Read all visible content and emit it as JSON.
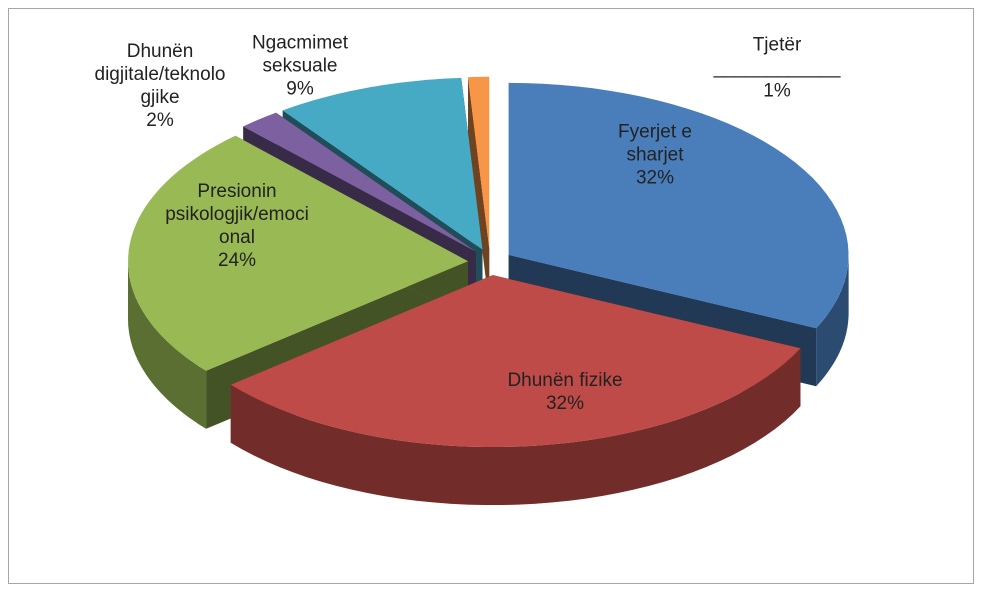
{
  "chart_data": {
    "type": "pie3d",
    "categories": [
      "Fyerjet e sharjet",
      "Dhunën fizike",
      "Presionin psikologjik/emocional",
      "Dhunën digjitale/teknologjike",
      "Ngacmimet seksuale",
      "Tjetër ____________"
    ],
    "values": [
      32,
      32,
      24,
      2,
      9,
      1
    ],
    "value_labels": [
      "32%",
      "32%",
      "24%",
      "2%",
      "9%",
      "1%"
    ],
    "colors": [
      "#4a7ebb",
      "#be4b48",
      "#98b954",
      "#7d60a0",
      "#46aac5",
      "#f79646"
    ]
  }
}
